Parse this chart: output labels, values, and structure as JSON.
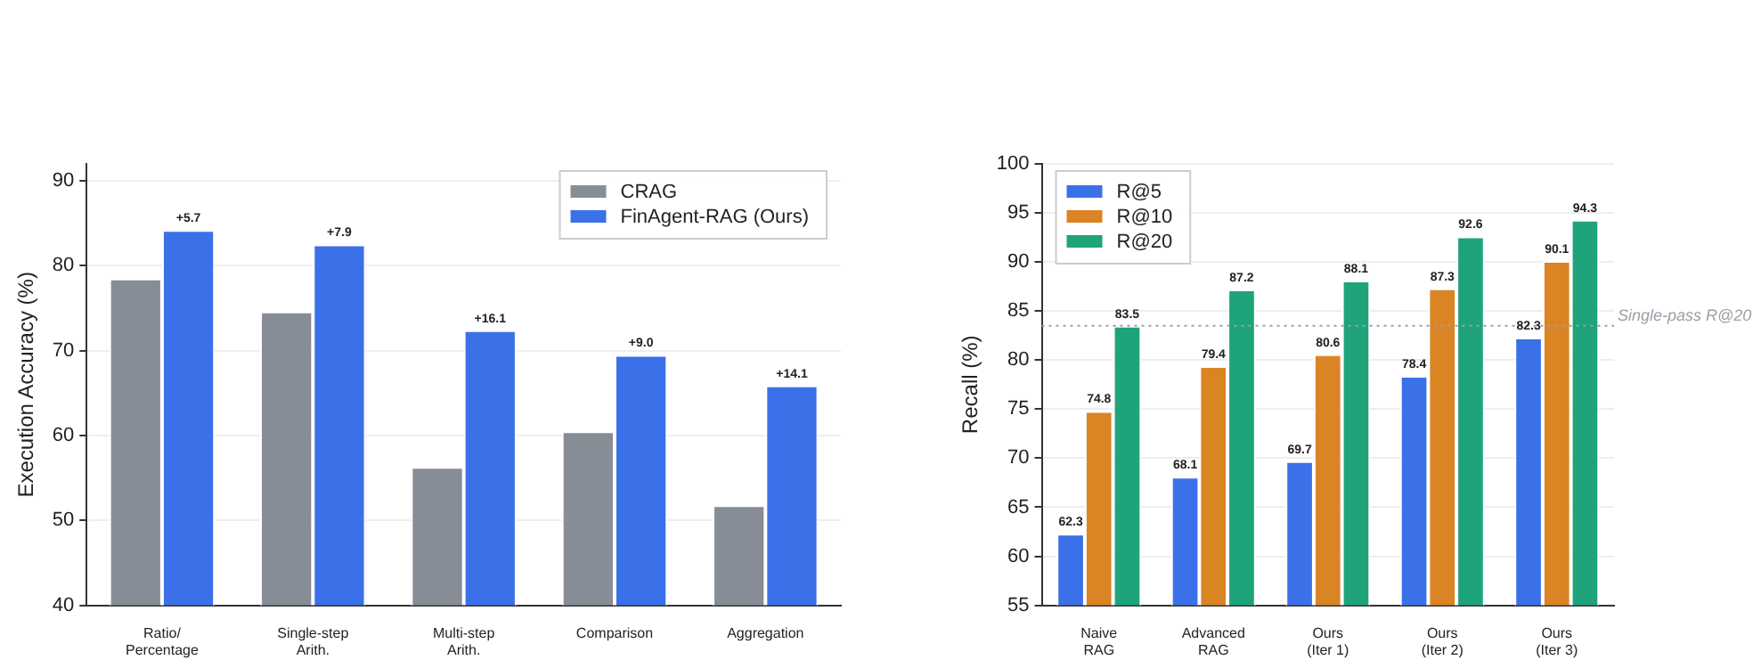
{
  "chart_data": [
    {
      "type": "bar",
      "ylabel": "Execution Accuracy (%)",
      "categories": [
        "Ratio/\nPercentage",
        "Single-step\nArith.",
        "Multi-step\nArith.",
        "Comparison",
        "Aggregation"
      ],
      "series": [
        {
          "name": "CRAG",
          "color": "#878d96",
          "values": [
            78.5,
            74.6,
            56.3,
            60.5,
            51.8
          ]
        },
        {
          "name": "FinAgent-RAG (Ours)",
          "color": "#3b71e8",
          "values": [
            84.2,
            82.5,
            72.4,
            69.5,
            65.9
          ]
        }
      ],
      "annotations": [
        {
          "text": "+5.7",
          "x": "Ratio/\nPercentage",
          "y": 84.2
        },
        {
          "text": "+7.9",
          "x": "Single-step\nArith.",
          "y": 82.5
        },
        {
          "text": "+16.1",
          "x": "Multi-step\nArith.",
          "y": 72.4
        },
        {
          "text": "+9.0",
          "x": "Comparison",
          "y": 69.5
        },
        {
          "text": "+14.1",
          "x": "Aggregation",
          "y": 65.9
        }
      ],
      "ylim": [
        40,
        92
      ],
      "yticks": [
        40,
        50,
        60,
        70,
        80,
        90
      ],
      "grid": "y",
      "legend": "top right"
    },
    {
      "type": "bar",
      "ylabel": "Recall (%)",
      "categories": [
        "Naive\nRAG",
        "Advanced\nRAG",
        "Ours\n(Iter 1)",
        "Ours\n(Iter 2)",
        "Ours\n(Iter 3)"
      ],
      "series": [
        {
          "name": "R@5",
          "color": "#3b71e8",
          "values": [
            62.3,
            68.1,
            69.7,
            78.4,
            82.3
          ]
        },
        {
          "name": "R@10",
          "color": "#db8424",
          "values": [
            74.8,
            79.4,
            80.6,
            87.3,
            90.1
          ]
        },
        {
          "name": "R@20",
          "color": "#1fa37a",
          "values": [
            83.5,
            87.2,
            88.1,
            92.6,
            94.3
          ]
        }
      ],
      "ylim": [
        55,
        100
      ],
      "yticks": [
        55,
        60,
        65,
        70,
        75,
        80,
        85,
        90,
        95,
        100
      ],
      "grid": "y",
      "legend": "top left",
      "data_labels": true,
      "ref_lines": [
        {
          "axis": "y",
          "value": 83.5,
          "label": "Single-pass R@20",
          "color": "#9aa0a8",
          "line_style": "dotted"
        }
      ]
    }
  ]
}
